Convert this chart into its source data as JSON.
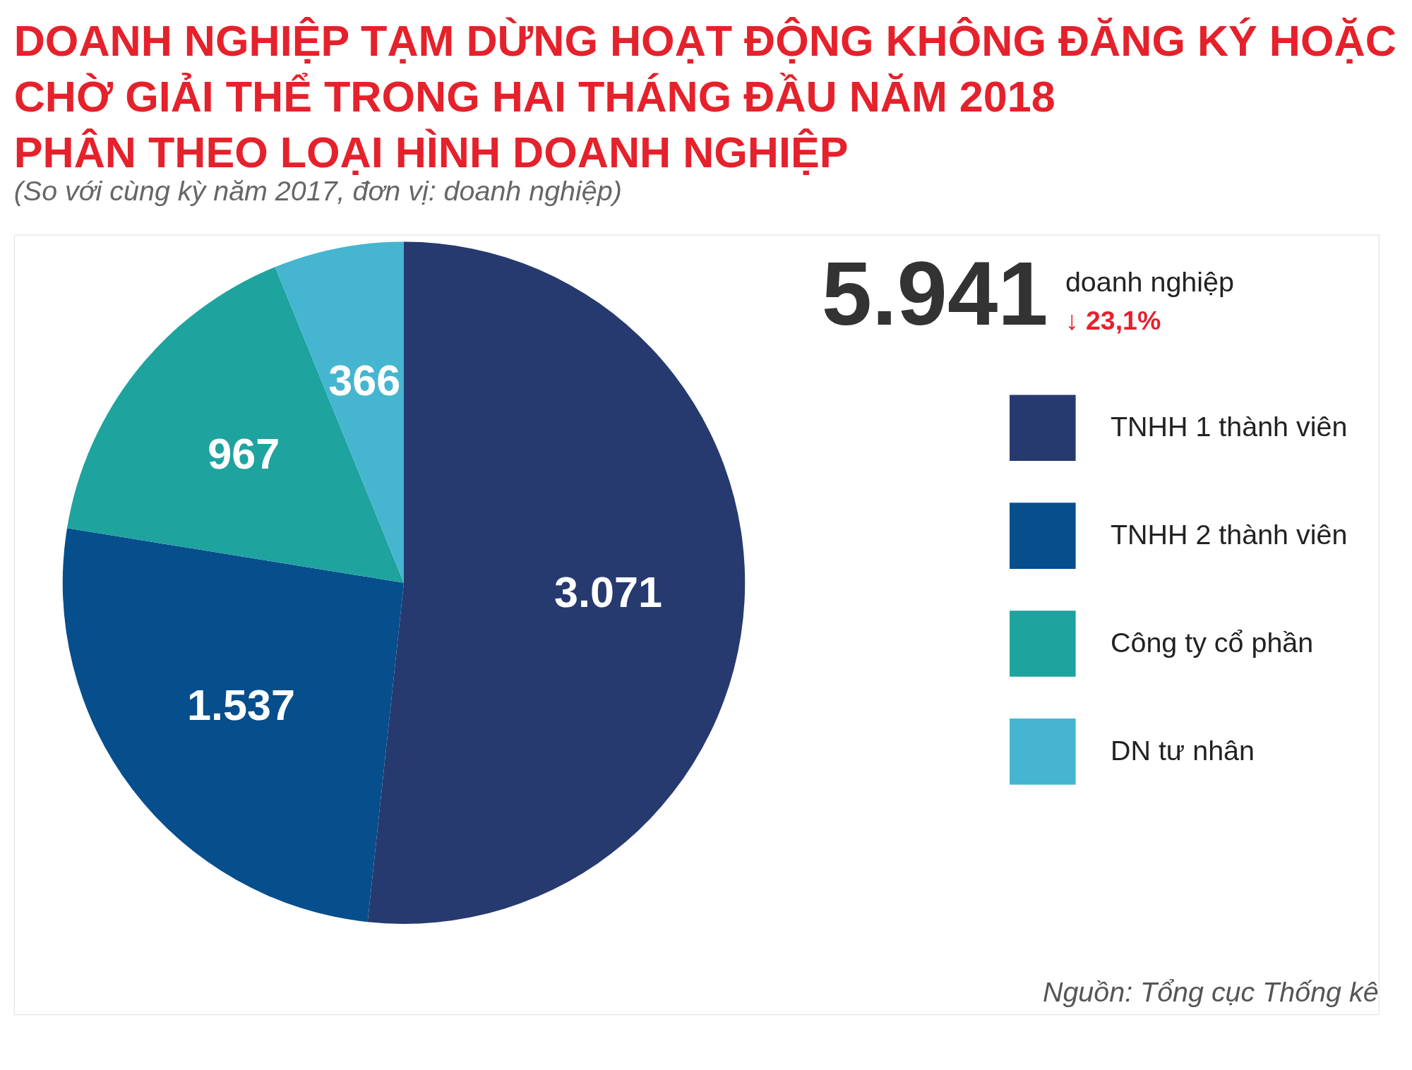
{
  "chart_data": {
    "type": "pie",
    "title": [
      "DOANH NGHIỆP TẠM DỪNG HOẠT ĐỘNG KHÔNG ĐĂNG KÝ HOẶC",
      "CHỜ GIẢI THỂ TRONG HAI THÁNG ĐẦU NĂM 2018",
      "PHÂN THEO LOẠI HÌNH DOANH NGHIỆP"
    ],
    "subtitle": "(So với cùng kỳ năm 2017, đơn vị: doanh nghiệp)",
    "categories": [
      "TNHH 1 thành viên",
      "TNHH 2 thành viên",
      "Công ty cổ phần",
      "DN tư nhân"
    ],
    "values": [
      3071,
      1537,
      967,
      366
    ],
    "colors": [
      "#263a70",
      "#064e8c",
      "#1ea39f",
      "#46b5cf"
    ],
    "value_labels": [
      "3.071",
      "1.537",
      "967",
      "366"
    ],
    "legend": "right",
    "annotations": [
      "5.941",
      "doanh nghiệp",
      "↓ 23,1%",
      "Nguồn: Tổng cục Thống kê"
    ]
  }
}
